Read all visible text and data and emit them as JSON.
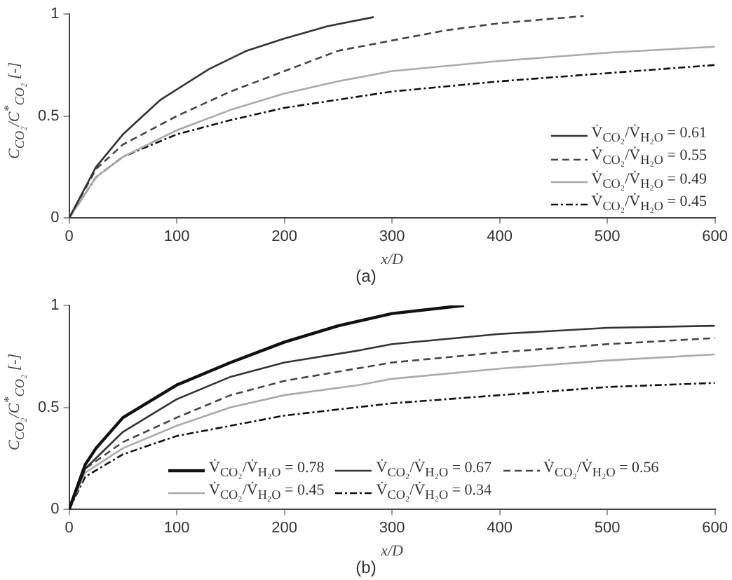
{
  "chart_data": [
    {
      "type": "line",
      "title": "(a)",
      "xlabel": "x/D",
      "ylabel": "C$_{CO₂}$/C$^{*}$$_{CO₂}$ [-]",
      "xlim": [
        0,
        600
      ],
      "xticks": [
        0,
        100,
        200,
        300,
        400,
        500,
        600
      ],
      "ylim": [
        0,
        1
      ],
      "yticks": [
        0,
        0.5,
        1
      ],
      "grid": false,
      "legend": "bottom right",
      "marker": "none",
      "series": [
        {
          "name": "V̇$_{CO₂}$/V̇$_{H₂O}$ = 0.61",
          "color": "#333333",
          "line_style": "solid",
          "x": [
            0,
            25,
            50,
            85,
            130,
            165,
            200,
            240,
            283
          ],
          "values": [
            0,
            0.25,
            0.41,
            0.58,
            0.73,
            0.82,
            0.88,
            0.94,
            0.985
          ]
        },
        {
          "name": "V̇$_{CO₂}$/V̇$_{H₂O}$ = 0.55",
          "color": "#444444",
          "line_style": "dashed",
          "x": [
            0,
            25,
            50,
            100,
            150,
            200,
            250,
            300,
            350,
            400,
            478
          ],
          "values": [
            0,
            0.24,
            0.36,
            0.5,
            0.62,
            0.72,
            0.82,
            0.87,
            0.92,
            0.955,
            0.99
          ]
        },
        {
          "name": "V̇$_{CO₂}$/V̇$_{H₂O}$ = 0.49",
          "color": "#aaaaaa",
          "line_style": "solid",
          "x": [
            0,
            25,
            50,
            100,
            150,
            200,
            250,
            300,
            400,
            500,
            600
          ],
          "values": [
            0,
            0.2,
            0.3,
            0.43,
            0.53,
            0.61,
            0.67,
            0.72,
            0.77,
            0.81,
            0.84
          ]
        },
        {
          "name": "V̇$_{CO₂}$/V̇$_{H₂O}$ = 0.45",
          "color": "#111111",
          "line_style": "dashdot",
          "x": [
            0,
            25,
            50,
            100,
            150,
            200,
            300,
            400,
            500,
            600
          ],
          "values": [
            0,
            0.2,
            0.3,
            0.41,
            0.48,
            0.54,
            0.62,
            0.67,
            0.71,
            0.75
          ]
        }
      ]
    },
    {
      "type": "line",
      "title": "(b)",
      "xlabel": "x/D",
      "ylabel": "C$_{CO₂}$/C$^{*}$$_{CO₂}$ [-]",
      "xlim": [
        0,
        600
      ],
      "xticks": [
        0,
        100,
        200,
        300,
        400,
        500,
        600
      ],
      "ylim": [
        0,
        1
      ],
      "yticks": [
        0,
        0.5,
        1
      ],
      "grid": false,
      "legend": "bottom",
      "marker": "none",
      "series": [
        {
          "name": "V̇$_{CO₂}$/V̇$_{H₂O}$ = 0.78",
          "color": "#111111",
          "line_style": "solid",
          "x": [
            0,
            15,
            25,
            50,
            100,
            150,
            200,
            250,
            300,
            367
          ],
          "values": [
            0,
            0.22,
            0.3,
            0.45,
            0.61,
            0.72,
            0.82,
            0.9,
            0.96,
            1.0
          ]
        },
        {
          "name": "V̇$_{CO₂}$/V̇$_{H₂O}$ = 0.67",
          "color": "#333333",
          "line_style": "solid",
          "x": [
            0,
            15,
            50,
            100,
            150,
            200,
            270,
            300,
            400,
            500,
            600
          ],
          "values": [
            0,
            0.2,
            0.38,
            0.54,
            0.65,
            0.72,
            0.78,
            0.81,
            0.86,
            0.89,
            0.9
          ]
        },
        {
          "name": "V̇$_{CO₂}$/V̇$_{H₂O}$ = 0.56",
          "color": "#444444",
          "line_style": "dashed",
          "x": [
            0,
            15,
            50,
            100,
            150,
            200,
            300,
            400,
            500,
            600
          ],
          "values": [
            0,
            0.2,
            0.33,
            0.45,
            0.56,
            0.63,
            0.72,
            0.77,
            0.81,
            0.84
          ]
        },
        {
          "name": "V̇$_{CO₂}$/V̇$_{H₂O}$ = 0.45",
          "color": "#aaaaaa",
          "line_style": "solid",
          "x": [
            0,
            15,
            50,
            100,
            150,
            200,
            270,
            300,
            400,
            500,
            600
          ],
          "values": [
            0,
            0.18,
            0.3,
            0.41,
            0.5,
            0.56,
            0.61,
            0.64,
            0.69,
            0.73,
            0.76
          ]
        },
        {
          "name": "V̇$_{CO₂}$/V̇$_{H₂O}$ = 0.34",
          "color": "#111111",
          "line_style": "dashdot",
          "x": [
            0,
            15,
            50,
            100,
            150,
            200,
            300,
            400,
            500,
            600
          ],
          "values": [
            0,
            0.16,
            0.27,
            0.36,
            0.41,
            0.46,
            0.52,
            0.56,
            0.6,
            0.62
          ]
        }
      ]
    }
  ]
}
